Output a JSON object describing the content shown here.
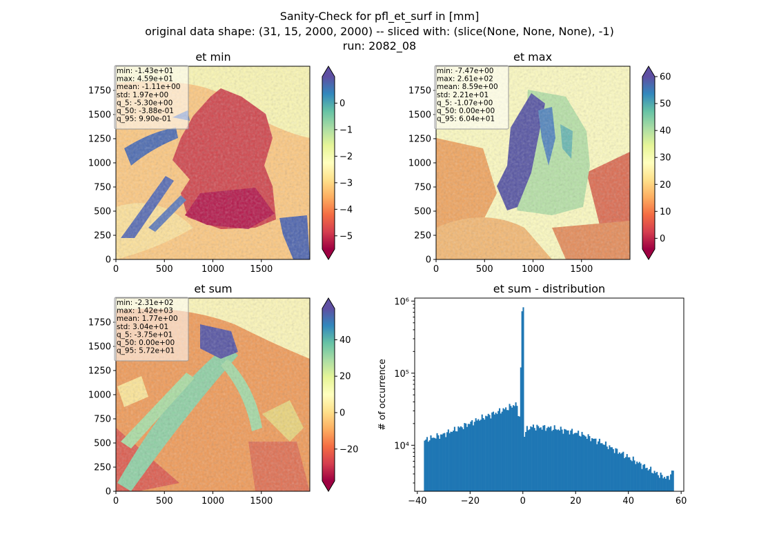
{
  "figure": {
    "title_lines": [
      "Sanity-Check for pfl_et_surf in [mm]",
      "original data shape: (31, 15, 2000, 2000) -- sliced with: (slice(None, None, None), -1)",
      "run: 2082_08"
    ]
  },
  "chart_data": [
    {
      "type": "heatmap",
      "title": "et min",
      "x_ticks": [
        "0",
        "500",
        "1000",
        "1500"
      ],
      "y_ticks": [
        "0",
        "250",
        "500",
        "750",
        "1000",
        "1250",
        "1500",
        "1750"
      ],
      "colorbar": {
        "cmap": "Spectral",
        "vmin": -5.5,
        "vmax": 1,
        "extend": "both",
        "ticks": [
          "0",
          "−1",
          "−2",
          "−3",
          "−4",
          "−5"
        ]
      },
      "stats": [
        "min: -1.43e+01",
        "max: 4.59e+01",
        "mean: -1.11e+00",
        "std: 1.97e+00",
        "q_5: -5.30e+00",
        "q_50: -3.88e-01",
        "q_95: 9.90e-01"
      ]
    },
    {
      "type": "heatmap",
      "title": "et max",
      "x_ticks": [
        "0",
        "500",
        "1000",
        "1500"
      ],
      "y_ticks": [
        "0",
        "250",
        "500",
        "750",
        "1000",
        "1250",
        "1500",
        "1750"
      ],
      "colorbar": {
        "cmap": "Spectral",
        "vmin": -4,
        "vmax": 60,
        "extend": "both",
        "ticks": [
          "60",
          "50",
          "40",
          "30",
          "20",
          "10",
          "0"
        ]
      },
      "stats": [
        "min: -7.47e+00",
        "max: 2.61e+02",
        "mean: 8.59e+00",
        "std: 2.21e+01",
        "q_5: -1.07e+00",
        "q_50: 0.00e+00",
        "q_95: 6.04e+01"
      ]
    },
    {
      "type": "heatmap",
      "title": "et sum",
      "x_ticks": [
        "0",
        "500",
        "1000",
        "1500"
      ],
      "y_ticks": [
        "0",
        "250",
        "500",
        "750",
        "1000",
        "1250",
        "1500",
        "1750"
      ],
      "colorbar": {
        "cmap": "Spectral",
        "vmin": -37.5,
        "vmax": 57.2,
        "extend": "both",
        "ticks": [
          "40",
          "20",
          "0",
          "−20"
        ]
      },
      "stats": [
        "min: -2.31e+02",
        "max: 1.42e+03",
        "mean: 1.77e+00",
        "std: 3.04e+01",
        "q_5: -3.75e+01",
        "q_50: 0.00e+00",
        "q_95: 5.72e+01"
      ]
    },
    {
      "type": "bar",
      "title": "et sum - distribution",
      "ylabel": "# of occurrence",
      "yscale": "log",
      "xlim": [
        -41,
        61
      ],
      "ylim": [
        2300,
        1100000
      ],
      "x_ticks": [
        "−40",
        "−20",
        "0",
        "20",
        "40",
        "60"
      ],
      "y_ticks": [
        "10⁴",
        "10⁵",
        "10⁶"
      ],
      "bins": {
        "start": -37.5,
        "end": 57.2,
        "count": 200
      },
      "profile": [
        {
          "x": -37.5,
          "y": 11500
        },
        {
          "x": -36,
          "y": 12200
        },
        {
          "x": -34,
          "y": 12800
        },
        {
          "x": -32,
          "y": 13500
        },
        {
          "x": -30,
          "y": 14200
        },
        {
          "x": -28,
          "y": 15300
        },
        {
          "x": -26,
          "y": 16200
        },
        {
          "x": -24,
          "y": 17500
        },
        {
          "x": -22,
          "y": 18800
        },
        {
          "x": -20,
          "y": 20300
        },
        {
          "x": -18,
          "y": 21800
        },
        {
          "x": -16,
          "y": 23500
        },
        {
          "x": -14,
          "y": 25000
        },
        {
          "x": -12,
          "y": 26800
        },
        {
          "x": -10,
          "y": 28500
        },
        {
          "x": -8,
          "y": 30500
        },
        {
          "x": -6,
          "y": 32500
        },
        {
          "x": -4,
          "y": 35500
        },
        {
          "x": -2.5,
          "y": 37000
        },
        {
          "x": -1.2,
          "y": 24000
        },
        {
          "x": -0.3,
          "y": 820000
        },
        {
          "x": 0.3,
          "y": 13500
        },
        {
          "x": 1.5,
          "y": 16500
        },
        {
          "x": 3,
          "y": 18000
        },
        {
          "x": 6,
          "y": 17800
        },
        {
          "x": 10,
          "y": 17500
        },
        {
          "x": 14,
          "y": 16600
        },
        {
          "x": 18,
          "y": 15600
        },
        {
          "x": 22,
          "y": 14300
        },
        {
          "x": 26,
          "y": 12500
        },
        {
          "x": 30,
          "y": 10800
        },
        {
          "x": 34,
          "y": 9000
        },
        {
          "x": 38,
          "y": 7500
        },
        {
          "x": 42,
          "y": 6200
        },
        {
          "x": 46,
          "y": 5100
        },
        {
          "x": 50,
          "y": 4200
        },
        {
          "x": 53,
          "y": 3700
        },
        {
          "x": 55,
          "y": 3500
        },
        {
          "x": 57.2,
          "y": 4600
        }
      ],
      "bar_color": "#1f77b4"
    }
  ]
}
